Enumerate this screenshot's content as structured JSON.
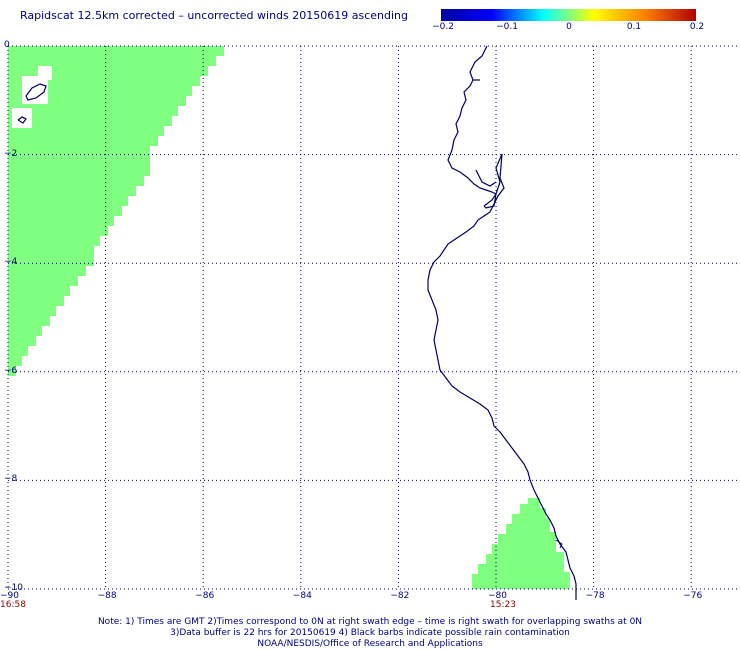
{
  "title": "Rapidscat 12.5km corrected – uncorrected winds 20150619 ascending",
  "colorbar": {
    "ticks": [
      "−0.2",
      "−0.1",
      "0",
      "0.1",
      "0.2"
    ],
    "colors": [
      "#0000a0",
      "#0000ff",
      "#00ffff",
      "#ffff00",
      "#ff8000",
      "#b00000"
    ]
  },
  "map": {
    "lon_range": [
      -90,
      -75
    ],
    "lat_range": [
      -10,
      0
    ],
    "x_tick_labels": [
      "−90",
      "−88",
      "−86",
      "−84",
      "−82",
      "−80",
      "−78",
      "−76"
    ],
    "y_tick_labels": [
      "0",
      "−2",
      "−4",
      "−6",
      "−8",
      "−10"
    ],
    "swath_color": "#80ff80",
    "coast_color": "#000060",
    "grid_color": "#000060",
    "swath_times": [
      "16:58",
      "15:23"
    ]
  },
  "footer": {
    "line1": "Note: 1) Times are GMT 2)Times correspond to 0N at right swath edge – time is right swath for overlapping swaths at 0N",
    "line2": "3)Data buffer is 22 hrs for 20150619 4) Black barbs indicate possible rain contamination",
    "line3": "NOAA/NESDIS/Office of Research and Applications"
  }
}
